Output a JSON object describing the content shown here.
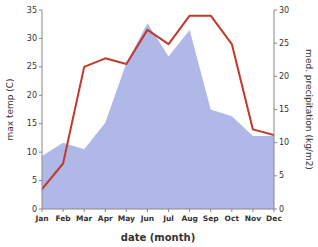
{
  "chart_data": {
    "type": "line",
    "xlabel": "date (month)",
    "ylabel": "max temp (C)",
    "y2label": "med. precipitation (kg/m2)",
    "categories": [
      "Jan",
      "Feb",
      "Mar",
      "Apr",
      "May",
      "Jun",
      "Jul",
      "Aug",
      "Sep",
      "Oct",
      "Nov",
      "Dec"
    ],
    "series": [
      {
        "type": "area",
        "axis": "y2",
        "color": "#b0b8e8",
        "values": [
          8.0,
          10.0,
          9.0,
          13.0,
          22.0,
          28.0,
          23.0,
          27.0,
          15.0,
          14.0,
          11.0,
          11.0
        ]
      },
      {
        "type": "line",
        "color": "#c0392b",
        "values": [
          3.5,
          8.0,
          25.0,
          26.5,
          25.5,
          31.5,
          29.0,
          34.0,
          34.0,
          29.0,
          14.0,
          13.0
        ]
      }
    ],
    "ylim": [
      0,
      35
    ],
    "yticks": [
      0,
      5,
      10,
      15,
      20,
      25,
      30,
      35
    ],
    "y2lim": [
      0,
      30
    ],
    "y2ticks": [
      0,
      5,
      10,
      15,
      20,
      25,
      30
    ],
    "grid": false
  }
}
